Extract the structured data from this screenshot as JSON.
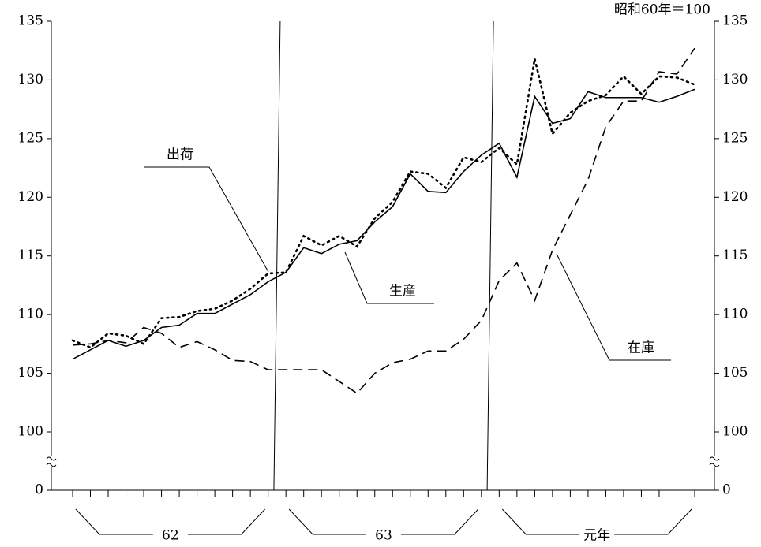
{
  "chart_data": {
    "type": "line",
    "unit_note": "昭和60年＝100",
    "categories": [
      null,
      null,
      null,
      null,
      null,
      null,
      null,
      null,
      null,
      null,
      null,
      null,
      null,
      null,
      null,
      null,
      null,
      null,
      null,
      null,
      null,
      null,
      null,
      null,
      null,
      null,
      null,
      null,
      null,
      null,
      null,
      null,
      null,
      null,
      null,
      null
    ],
    "x_groups": [
      "62",
      "63",
      "元年"
    ],
    "ylim": [
      0,
      135
    ],
    "axis_break": [
      0,
      100
    ],
    "yticks": [
      0,
      100,
      105,
      110,
      115,
      120,
      125,
      130,
      135
    ],
    "y2lim": [
      0,
      135
    ],
    "y2ticks": [
      0,
      100,
      105,
      110,
      115,
      120,
      125,
      130,
      135
    ],
    "grid": false,
    "series": [
      {
        "name": "出荷",
        "color": "#000000",
        "style": "solid",
        "values": [
          106.2,
          107.0,
          107.8,
          107.3,
          107.8,
          108.9,
          109.1,
          110.1,
          110.1,
          110.9,
          111.7,
          112.8,
          113.6,
          115.7,
          115.2,
          116.0,
          116.3,
          117.9,
          119.2,
          122.0,
          120.5,
          120.4,
          122.2,
          123.6,
          124.6,
          121.7,
          128.6,
          126.3,
          126.7,
          129.0,
          128.5,
          128.5,
          128.5,
          128.1,
          128.6,
          129.2
        ]
      },
      {
        "name": "生産",
        "color": "#000000",
        "style": "dotted",
        "values": [
          107.8,
          107.2,
          108.4,
          108.2,
          107.5,
          109.7,
          109.8,
          110.3,
          110.5,
          111.2,
          112.2,
          113.5,
          113.6,
          116.7,
          115.9,
          116.7,
          115.8,
          118.2,
          119.6,
          122.2,
          122.0,
          120.8,
          123.4,
          123.0,
          124.2,
          122.8,
          131.8,
          125.4,
          127.2,
          128.2,
          128.7,
          130.3,
          128.8,
          130.3,
          130.2,
          129.6
        ]
      },
      {
        "name": "在庫",
        "color": "#000000",
        "style": "dashed",
        "values": [
          107.4,
          107.5,
          107.8,
          107.6,
          108.9,
          108.4,
          107.2,
          107.7,
          107.0,
          106.1,
          106.0,
          105.3,
          105.3,
          105.3,
          105.3,
          104.3,
          103.3,
          105.0,
          105.9,
          106.2,
          106.9,
          106.9,
          107.9,
          109.5,
          112.9,
          114.4,
          111.2,
          115.5,
          118.5,
          121.5,
          126.0,
          128.2,
          128.2,
          130.7,
          130.5,
          132.7
        ]
      }
    ]
  }
}
